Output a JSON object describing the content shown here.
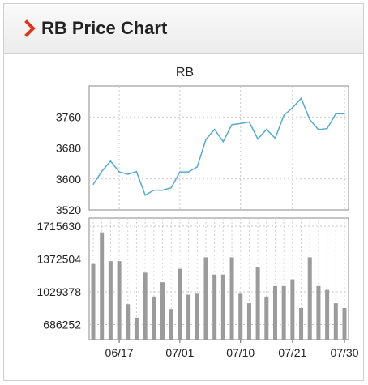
{
  "header": {
    "title": "RB Price Chart",
    "icon": "chevron-right-icon",
    "accent": "#d9381e"
  },
  "chart_data": [
    {
      "type": "line",
      "title": "RB",
      "color": "#56a9cf",
      "ylim": [
        3520,
        3840
      ],
      "yticks": [
        3520,
        3600,
        3680,
        3760
      ],
      "xtick_labels": [
        "06/17",
        "07/01",
        "07/10",
        "07/21",
        "07/30"
      ],
      "xtick_index": [
        3,
        10,
        17,
        23,
        29
      ],
      "values": [
        3586,
        3620,
        3646,
        3618,
        3612,
        3619,
        3558,
        3571,
        3571,
        3577,
        3618,
        3618,
        3631,
        3702,
        3728,
        3696,
        3740,
        3743,
        3747,
        3703,
        3728,
        3705,
        3764,
        3784,
        3808,
        3753,
        3727,
        3730,
        3768,
        3768
      ],
      "grid": true
    },
    {
      "type": "bar",
      "color": "#9b9b9b",
      "ylim": [
        530000,
        1800000
      ],
      "yticks": [
        686252,
        1029378,
        1372504,
        1715630
      ],
      "xtick_labels": [
        "06/17",
        "07/01",
        "07/10",
        "07/21",
        "07/30"
      ],
      "xtick_index": [
        3,
        10,
        17,
        23,
        29
      ],
      "values": [
        1320000,
        1650000,
        1350000,
        1350000,
        900000,
        760000,
        1230000,
        980000,
        1130000,
        850000,
        1270000,
        1000000,
        1010000,
        1390000,
        1210000,
        1210000,
        1390000,
        1010000,
        910000,
        1290000,
        980000,
        1090000,
        1090000,
        1160000,
        860000,
        1390000,
        1090000,
        1050000,
        910000,
        860000
      ],
      "grid": true
    }
  ]
}
